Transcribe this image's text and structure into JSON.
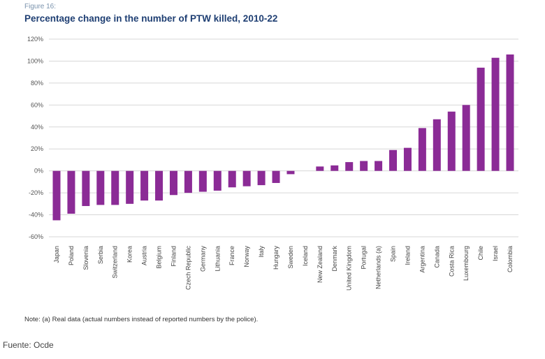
{
  "figure_label": "Figure 16:",
  "note": "Note: (a) Real data (actual numbers instead of reported numbers by the police).",
  "source": "Fuente: Ocde",
  "colors": {
    "bar": "#8b2b96",
    "grid": "#d7d7d7",
    "title": "#1f3f73"
  },
  "chart_data": {
    "type": "bar",
    "title": "Percentage change in the number of PTW killed, 2010-22",
    "xlabel": "",
    "ylabel": "",
    "ylim": [
      -60,
      120
    ],
    "yticks": [
      -60,
      -40,
      -20,
      0,
      20,
      40,
      60,
      80,
      100,
      120
    ],
    "ytick_labels": [
      "-60%",
      "-40%",
      "-20%",
      "0%",
      "20%",
      "40%",
      "60%",
      "80%",
      "100%",
      "120%"
    ],
    "grid": true,
    "legend": "none",
    "categories": [
      "Japan",
      "Poland",
      "Slovenia",
      "Serbia",
      "Switzerland",
      "Korea",
      "Austria",
      "Belgium",
      "Finland",
      "Czech Republic",
      "Germany",
      "Lithuania",
      "France",
      "Norway",
      "Italy",
      "Hungary",
      "Sweden",
      "Iceland",
      "New Zealand",
      "Denmark",
      "United Kingdom",
      "Portugal",
      "Netherlands (a)",
      "Spain",
      "Ireland",
      "Argentina",
      "Canada",
      "Costa Rica",
      "Luxembourg",
      "Chile",
      "Israel",
      "Colombia"
    ],
    "values": [
      -45,
      -39,
      -32,
      -31,
      -31,
      -30,
      -27,
      -27,
      -22,
      -20,
      -19,
      -18,
      -15,
      -14,
      -13,
      -11,
      -3,
      0,
      4,
      5,
      8,
      9,
      9,
      19,
      21,
      39,
      47,
      54,
      60,
      94,
      103,
      106
    ]
  }
}
